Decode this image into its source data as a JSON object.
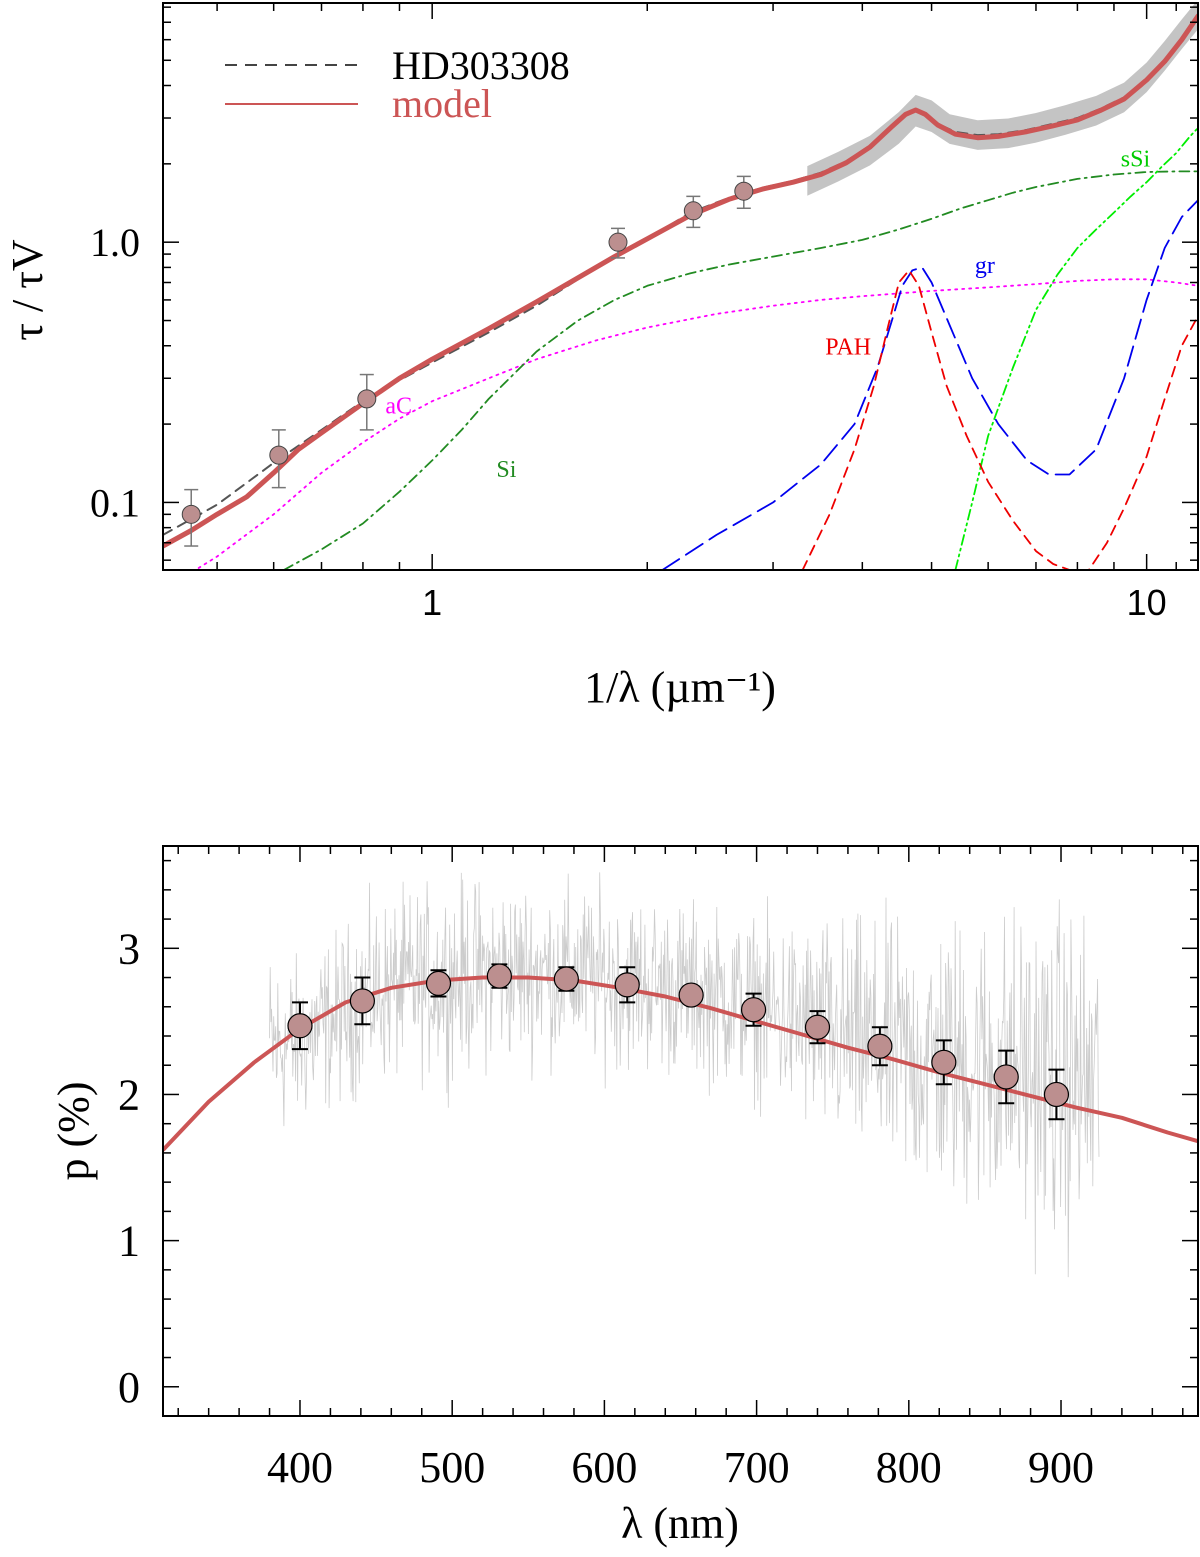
{
  "chart_data": [
    {
      "type": "line",
      "title": "",
      "xlabel": "1/λ (µm⁻¹)",
      "ylabel": "τ / τV",
      "xscale": "log",
      "yscale": "log",
      "xlim": [
        0.42,
        11.8
      ],
      "ylim": [
        0.055,
        8.3
      ],
      "x_tick_labels": [
        "1",
        "10"
      ],
      "x_ticks": [
        1,
        10
      ],
      "y_tick_labels": [
        "0.1",
        "1.0"
      ],
      "y_ticks": [
        0.1,
        1.0
      ],
      "legend": [
        {
          "label": "HD303308",
          "style": "dashed",
          "color": "#444444"
        },
        {
          "label": "model",
          "style": "solid",
          "color": "#cc5555"
        }
      ],
      "legend_position": "top-left",
      "points": {
        "name": "photometry",
        "x": [
          0.46,
          0.61,
          0.81,
          1.82,
          2.32,
          2.73
        ],
        "y": [
          0.09,
          0.152,
          0.25,
          1.0,
          1.32,
          1.57
        ],
        "yerr": [
          0.022,
          0.038,
          0.06,
          0.13,
          0.18,
          0.22
        ]
      },
      "band": {
        "name": "HD303308 uncertainty",
        "x": [
          3.35,
          3.7,
          4.1,
          4.5,
          4.75,
          5.0,
          5.3,
          5.8,
          6.4,
          7.0,
          7.7,
          8.5,
          9.3,
          10.0,
          10.6,
          11.2,
          11.8
        ],
        "y": [
          1.72,
          1.95,
          2.25,
          2.75,
          3.2,
          3.05,
          2.72,
          2.58,
          2.62,
          2.75,
          2.95,
          3.2,
          3.6,
          4.3,
          5.2,
          6.3,
          7.5
        ],
        "halfwidth": [
          0.14,
          0.14,
          0.14,
          0.15,
          0.15,
          0.15,
          0.14,
          0.14,
          0.14,
          0.14,
          0.14,
          0.14,
          0.14,
          0.14,
          0.14,
          0.14,
          0.14
        ]
      },
      "series": [
        {
          "name": "HD303308",
          "color": "#555555",
          "style": "dashed",
          "x": [
            0.42,
            0.5,
            0.6,
            0.7,
            0.8,
            0.9,
            1.0,
            1.2,
            1.4,
            1.6,
            1.8,
            2.0,
            2.3,
            2.6,
            2.9,
            3.2,
            3.5,
            3.8,
            4.1,
            4.4,
            4.6,
            4.75,
            4.9,
            5.1,
            5.4,
            5.8,
            6.2,
            6.8,
            7.4,
            8.0,
            8.6,
            9.3,
            10.0,
            10.6,
            11.2,
            11.8
          ],
          "y": [
            0.075,
            0.098,
            0.142,
            0.19,
            0.245,
            0.295,
            0.345,
            0.45,
            0.57,
            0.72,
            0.88,
            1.03,
            1.3,
            1.48,
            1.62,
            1.72,
            1.85,
            2.05,
            2.35,
            2.8,
            3.1,
            3.22,
            3.12,
            2.85,
            2.65,
            2.58,
            2.6,
            2.7,
            2.85,
            3.0,
            3.25,
            3.6,
            4.25,
            5.0,
            6.0,
            7.3
          ]
        },
        {
          "name": "model",
          "color": "#cc5555",
          "style": "solid",
          "x": [
            0.42,
            0.46,
            0.5,
            0.55,
            0.6,
            0.65,
            0.7,
            0.8,
            0.9,
            1.0,
            1.2,
            1.4,
            1.6,
            1.8,
            2.0,
            2.3,
            2.6,
            2.9,
            3.2,
            3.5,
            3.8,
            4.1,
            4.4,
            4.6,
            4.75,
            4.9,
            5.1,
            5.4,
            5.8,
            6.2,
            6.8,
            7.4,
            8.0,
            8.6,
            9.3,
            10.0,
            10.6,
            11.2,
            11.8
          ],
          "y": [
            0.068,
            0.078,
            0.09,
            0.105,
            0.13,
            0.16,
            0.185,
            0.24,
            0.3,
            0.355,
            0.465,
            0.59,
            0.73,
            0.88,
            1.03,
            1.27,
            1.46,
            1.6,
            1.7,
            1.82,
            2.02,
            2.32,
            2.78,
            3.1,
            3.22,
            3.1,
            2.82,
            2.6,
            2.52,
            2.55,
            2.66,
            2.8,
            2.95,
            3.2,
            3.55,
            4.2,
            4.95,
            6.0,
            7.4
          ]
        },
        {
          "name": "aC",
          "color": "#ff00ff",
          "style": "dotted",
          "x": [
            0.42,
            0.5,
            0.6,
            0.7,
            0.8,
            0.9,
            1.0,
            1.2,
            1.4,
            1.7,
            2.0,
            2.5,
            3.0,
            3.5,
            4.0,
            5.0,
            6.0,
            7.0,
            8.0,
            9.0,
            10.0,
            11.0,
            11.8
          ],
          "y": [
            0.046,
            0.062,
            0.09,
            0.13,
            0.17,
            0.21,
            0.245,
            0.3,
            0.355,
            0.42,
            0.47,
            0.53,
            0.57,
            0.6,
            0.62,
            0.65,
            0.67,
            0.69,
            0.71,
            0.72,
            0.72,
            0.7,
            0.68
          ]
        },
        {
          "name": "Si",
          "color": "#228B22",
          "style": "dashdot",
          "x": [
            0.62,
            0.7,
            0.8,
            0.9,
            1.0,
            1.1,
            1.2,
            1.4,
            1.6,
            1.8,
            2.0,
            2.3,
            2.6,
            3.0,
            3.5,
            4.0,
            4.5,
            5.0,
            5.5,
            6.0,
            6.5,
            7.0,
            8.0,
            9.0,
            10.0,
            11.0,
            11.8
          ],
          "y": [
            0.055,
            0.066,
            0.083,
            0.11,
            0.145,
            0.19,
            0.25,
            0.38,
            0.5,
            0.6,
            0.68,
            0.76,
            0.82,
            0.88,
            0.95,
            1.02,
            1.12,
            1.23,
            1.35,
            1.45,
            1.55,
            1.63,
            1.75,
            1.82,
            1.86,
            1.87,
            1.87
          ]
        },
        {
          "name": "sSi",
          "color": "#00ee00",
          "style": "dashdotdot",
          "x": [
            5.4,
            5.7,
            6.0,
            6.5,
            7.0,
            7.5,
            8.0,
            8.5,
            9.0,
            9.5,
            10.0,
            10.5,
            11.0,
            11.5,
            11.8
          ],
          "y": [
            0.055,
            0.1,
            0.18,
            0.33,
            0.55,
            0.75,
            0.95,
            1.12,
            1.3,
            1.5,
            1.7,
            1.95,
            2.2,
            2.55,
            2.75
          ]
        },
        {
          "name": "gr",
          "color": "#0000ee",
          "style": "longdash",
          "x": [
            2.1,
            2.5,
            3.0,
            3.5,
            3.9,
            4.2,
            4.4,
            4.55,
            4.7,
            4.85,
            5.0,
            5.3,
            5.7,
            6.2,
            6.8,
            7.3,
            7.8,
            8.5,
            9.3,
            10.0,
            10.6,
            11.2,
            11.8
          ],
          "y": [
            0.055,
            0.075,
            0.1,
            0.14,
            0.2,
            0.33,
            0.5,
            0.68,
            0.78,
            0.8,
            0.7,
            0.48,
            0.3,
            0.2,
            0.145,
            0.128,
            0.128,
            0.16,
            0.3,
            0.6,
            0.95,
            1.25,
            1.45
          ]
        },
        {
          "name": "PAH",
          "color": "#ee0000",
          "style": "dashed",
          "x": [
            3.3,
            3.6,
            3.9,
            4.15,
            4.35,
            4.5,
            4.65,
            4.8,
            5.0,
            5.25,
            5.6,
            6.0,
            6.5,
            7.0,
            7.4,
            7.8,
            8.3,
            8.8,
            9.3,
            10.0,
            10.6,
            11.2,
            11.8
          ],
          "y": [
            0.055,
            0.09,
            0.16,
            0.28,
            0.48,
            0.7,
            0.78,
            0.68,
            0.45,
            0.28,
            0.18,
            0.12,
            0.085,
            0.065,
            0.058,
            0.055,
            0.055,
            0.07,
            0.095,
            0.15,
            0.25,
            0.4,
            0.52
          ]
        }
      ],
      "annotations": [
        {
          "text": "aC",
          "x": 0.86,
          "y": 0.22,
          "color": "#ff00ff"
        },
        {
          "text": "Si",
          "x": 1.23,
          "y": 0.125,
          "color": "#228B22"
        },
        {
          "text": "PAH",
          "x": 3.55,
          "y": 0.37,
          "color": "#ee0000"
        },
        {
          "text": "gr",
          "x": 5.75,
          "y": 0.76,
          "color": "#0000ee"
        },
        {
          "text": "sSi",
          "x": 9.2,
          "y": 1.95,
          "color": "#00cc00"
        }
      ]
    },
    {
      "type": "line",
      "title": "",
      "xlabel": "λ   (nm)",
      "ylabel": "p (%)",
      "xlim": [
        310,
        990
      ],
      "ylim": [
        -0.2,
        3.7
      ],
      "x_ticks": [
        400,
        500,
        600,
        700,
        800,
        900
      ],
      "x_tick_labels": [
        "400",
        "500",
        "600",
        "700",
        "800",
        "900"
      ],
      "y_ticks": [
        0,
        1,
        2,
        3
      ],
      "y_tick_labels": [
        "0",
        "1",
        "2",
        "3"
      ],
      "spectrum": {
        "name": "observed spectrum (grey)",
        "color": "#cccccc",
        "x_range": [
          380,
          925
        ],
        "envelope_x": [
          380,
          400,
          450,
          500,
          550,
          600,
          650,
          700,
          750,
          800,
          850,
          900,
          925
        ],
        "envelope_low": [
          1.55,
          1.7,
          2.0,
          2.05,
          2.15,
          2.1,
          2.05,
          1.9,
          1.5,
          1.2,
          1.0,
          0.75,
          0.7
        ],
        "envelope_high": [
          3.1,
          3.0,
          3.4,
          3.55,
          3.55,
          3.5,
          3.4,
          3.3,
          3.3,
          3.3,
          3.4,
          3.45,
          3.4
        ]
      },
      "series": [
        {
          "name": "model",
          "color": "#cc5555",
          "style": "solid",
          "x": [
            310,
            340,
            370,
            400,
            430,
            460,
            490,
            520,
            550,
            580,
            610,
            640,
            670,
            700,
            730,
            760,
            790,
            820,
            850,
            880,
            910,
            940,
            970,
            990
          ],
          "y": [
            1.62,
            1.95,
            2.22,
            2.45,
            2.63,
            2.73,
            2.78,
            2.8,
            2.8,
            2.78,
            2.73,
            2.67,
            2.59,
            2.5,
            2.41,
            2.32,
            2.24,
            2.15,
            2.07,
            1.99,
            1.91,
            1.84,
            1.74,
            1.68
          ]
        }
      ],
      "points": {
        "name": "binned polarization",
        "x": [
          400,
          441,
          491,
          531,
          575,
          615,
          657,
          698,
          740,
          781,
          823,
          864,
          897
        ],
        "y": [
          2.47,
          2.64,
          2.76,
          2.81,
          2.79,
          2.75,
          2.68,
          2.58,
          2.46,
          2.33,
          2.22,
          2.12,
          2.0
        ],
        "yerr": [
          0.16,
          0.16,
          0.09,
          0.08,
          0.08,
          0.12,
          0.06,
          0.11,
          0.11,
          0.13,
          0.15,
          0.18,
          0.17
        ]
      }
    }
  ]
}
